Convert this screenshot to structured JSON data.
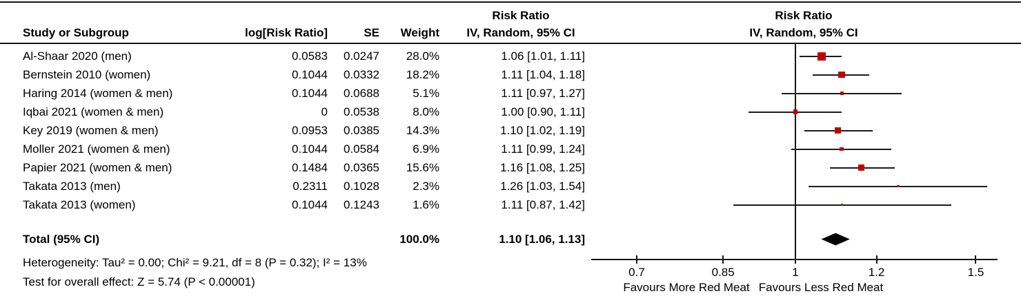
{
  "header": {
    "risk_ratio_text_col_line1": "Risk Ratio",
    "risk_ratio_text_col_line2": "IV, Random, 95% CI",
    "risk_ratio_plot_col_line1": "Risk Ratio",
    "risk_ratio_plot_col_line2": "IV, Random, 95% CI",
    "col_study": "Study or Subgroup",
    "col_log_rr": "log[Risk Ratio]",
    "col_se": "SE",
    "col_weight": "Weight"
  },
  "chart_data": {
    "type": "forest",
    "x_scale": "log10",
    "axis": {
      "range": [
        0.63,
        1.58
      ],
      "null_line": 1,
      "ticks": [
        {
          "value": 0.7,
          "label": "0.7"
        },
        {
          "value": 0.85,
          "label": "0.85"
        },
        {
          "value": 1,
          "label": "1"
        },
        {
          "value": 1.2,
          "label": "1.2"
        },
        {
          "value": 1.5,
          "label": "1.5"
        }
      ]
    },
    "studies": [
      {
        "name": "Al-Shaar 2020 (men)",
        "log_rr": "0.0583",
        "se": "0.0247",
        "weight": "28.0%",
        "rr": 1.06,
        "ci_low": 1.01,
        "ci_high": 1.11,
        "ci_label": "1.06 [1.01, 1.11]"
      },
      {
        "name": "Bernstein 2010 (women)",
        "log_rr": "0.1044",
        "se": "0.0332",
        "weight": "18.2%",
        "rr": 1.11,
        "ci_low": 1.04,
        "ci_high": 1.18,
        "ci_label": "1.11 [1.04, 1.18]"
      },
      {
        "name": "Haring 2014 (women & men)",
        "log_rr": "0.1044",
        "se": "0.0688",
        "weight": "5.1%",
        "rr": 1.11,
        "ci_low": 0.97,
        "ci_high": 1.27,
        "ci_label": "1.11 [0.97, 1.27]"
      },
      {
        "name": "Iqbai 2021 (women & men)",
        "log_rr": "0",
        "se": "0.0538",
        "weight": "8.0%",
        "rr": 1.0,
        "ci_low": 0.9,
        "ci_high": 1.11,
        "ci_label": "1.00 [0.90, 1.11]"
      },
      {
        "name": "Key 2019 (women & men)",
        "log_rr": "0.0953",
        "se": "0.0385",
        "weight": "14.3%",
        "rr": 1.1,
        "ci_low": 1.02,
        "ci_high": 1.19,
        "ci_label": "1.10 [1.02, 1.19]"
      },
      {
        "name": "Moller 2021 (women & men)",
        "log_rr": "0.1044",
        "se": "0.0584",
        "weight": "6.9%",
        "rr": 1.11,
        "ci_low": 0.99,
        "ci_high": 1.24,
        "ci_label": "1.11 [0.99, 1.24]"
      },
      {
        "name": "Papier 2021 (women & men)",
        "log_rr": "0.1484",
        "se": "0.0365",
        "weight": "15.6%",
        "rr": 1.16,
        "ci_low": 1.08,
        "ci_high": 1.25,
        "ci_label": "1.16 [1.08, 1.25]"
      },
      {
        "name": "Takata 2013 (men)",
        "log_rr": "0.2311",
        "se": "0.1028",
        "weight": "2.3%",
        "rr": 1.26,
        "ci_low": 1.03,
        "ci_high": 1.54,
        "ci_label": "1.26 [1.03, 1.54]"
      },
      {
        "name": "Takata 2013 (women)",
        "log_rr": "0.1044",
        "se": "0.1243",
        "weight": "1.6%",
        "rr": 1.11,
        "ci_low": 0.87,
        "ci_high": 1.42,
        "ci_label": "1.11 [0.87, 1.42]"
      }
    ],
    "total": {
      "name": "Total (95% CI)",
      "weight": "100.0%",
      "rr": 1.1,
      "ci_low": 1.06,
      "ci_high": 1.13,
      "ci_label": "1.10 [1.06, 1.13]"
    },
    "footer": {
      "heterogeneity": "Heterogeneity: Tau² = 0.00; Chi² = 9.21, df = 8 (P = 0.32); I² = 13%",
      "overall_effect": "Test for overall effect: Z = 5.74 (P < 0.00001)"
    },
    "favours_left": "Favours More Red Meat",
    "favours_right": "Favours Less Red Meat",
    "colors": {
      "square": "#c00000",
      "ci_line": "#1a1a1a",
      "diamond": "#000000",
      "axis": "#141414"
    }
  }
}
